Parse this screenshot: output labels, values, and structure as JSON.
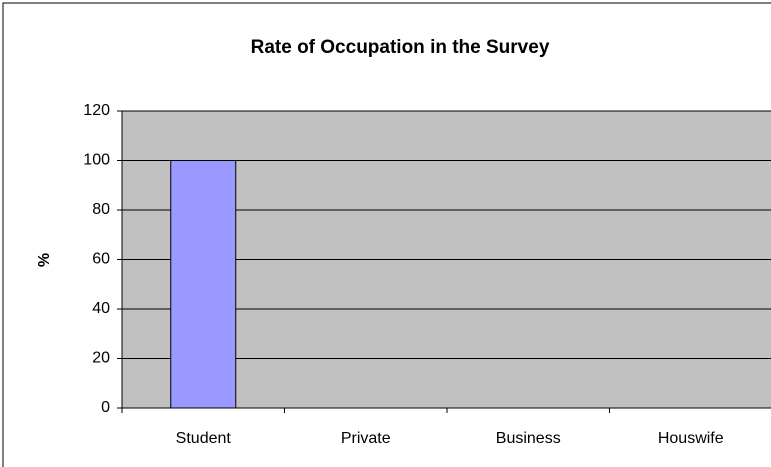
{
  "chart_data": {
    "type": "bar",
    "title": "Rate of Occupation in the Survey",
    "y_label": "%",
    "categories": [
      "Student",
      "Private",
      "Business",
      "Houswife"
    ],
    "values": [
      100,
      0,
      0,
      0
    ],
    "color": "#9999ff",
    "plot_background": "#c0c0c0",
    "ylim": [
      0,
      120
    ],
    "yticks": [
      0,
      20,
      40,
      60,
      80,
      100,
      120
    ],
    "grid": true
  }
}
